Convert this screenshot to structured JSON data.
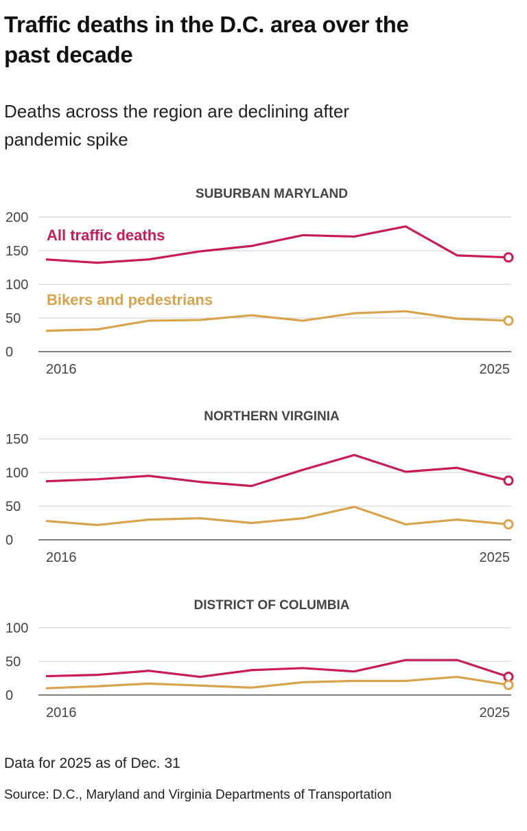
{
  "header": {
    "title": "Traffic deaths in the D.C. area over the past decade",
    "subtitle": "Deaths across the region are declining after pandemic spike"
  },
  "footer": {
    "note": "Data for 2025 as of Dec. 31",
    "source": "Source: D.C., Maryland and Virginia Departments of Transportation"
  },
  "colors": {
    "all": "#c81c52",
    "bikers": "#d9a34b"
  },
  "chart_data": [
    {
      "type": "line",
      "title": "SUBURBAN MARYLAND",
      "x": [
        2016,
        2017,
        2018,
        2019,
        2020,
        2021,
        2022,
        2023,
        2024,
        2025
      ],
      "x_tick_labels": [
        "2016",
        "2025"
      ],
      "ylim": [
        0,
        200
      ],
      "y_ticks": [
        0,
        50,
        100,
        150,
        200
      ],
      "grid": true,
      "series": [
        {
          "name": "All traffic deaths",
          "values": [
            137,
            132,
            137,
            149,
            157,
            173,
            171,
            186,
            143,
            140
          ]
        },
        {
          "name": "Bikers and pedestrians",
          "values": [
            31,
            33,
            46,
            47,
            54,
            46,
            57,
            60,
            49,
            46
          ]
        }
      ]
    },
    {
      "type": "line",
      "title": "NORTHERN VIRGINIA",
      "x": [
        2016,
        2017,
        2018,
        2019,
        2020,
        2021,
        2022,
        2023,
        2024,
        2025
      ],
      "x_tick_labels": [
        "2016",
        "2025"
      ],
      "ylim": [
        0,
        150
      ],
      "y_ticks": [
        0,
        50,
        100,
        150
      ],
      "grid": true,
      "series": [
        {
          "values": [
            87,
            90,
            95,
            86,
            80,
            104,
            126,
            101,
            107,
            88
          ]
        },
        {
          "values": [
            28,
            22,
            30,
            32,
            25,
            32,
            49,
            23,
            30,
            23
          ]
        }
      ]
    },
    {
      "type": "line",
      "title": "DISTRICT OF COLUMBIA",
      "x": [
        2016,
        2017,
        2018,
        2019,
        2020,
        2021,
        2022,
        2023,
        2024,
        2025
      ],
      "x_tick_labels": [
        "2016",
        "2025"
      ],
      "ylim": [
        0,
        100
      ],
      "y_ticks": [
        0,
        50,
        100
      ],
      "grid": true,
      "series": [
        {
          "values": [
            28,
            30,
            36,
            27,
            37,
            40,
            35,
            52,
            52,
            27
          ]
        },
        {
          "values": [
            10,
            13,
            17,
            14,
            11,
            19,
            21,
            21,
            27,
            15
          ]
        }
      ]
    }
  ]
}
